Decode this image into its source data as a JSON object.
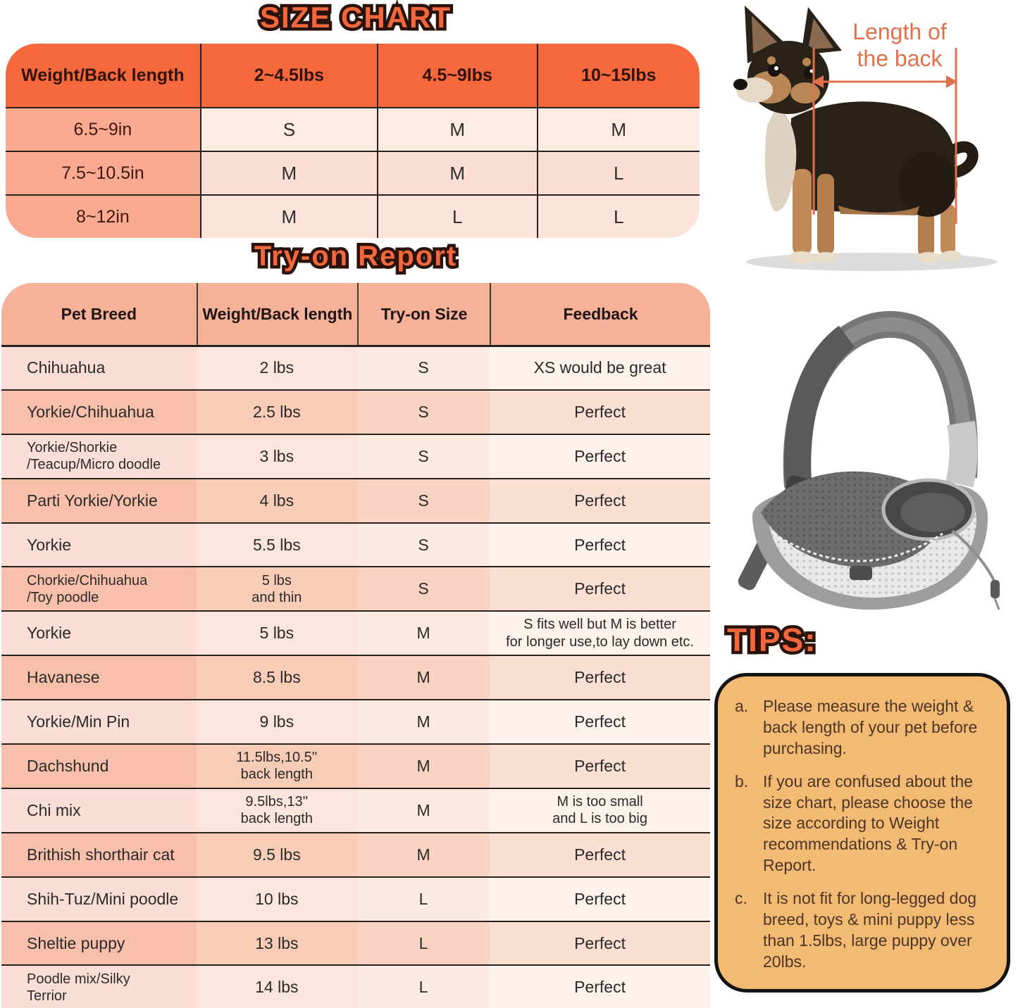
{
  "size_chart": {
    "title": "SIZE CHART",
    "columns": [
      "Weight/Back length",
      "2~4.5lbs",
      "4.5~9lbs",
      "10~15lbs"
    ],
    "rows": [
      {
        "label": "6.5~9in",
        "values": [
          "S",
          "M",
          "M"
        ]
      },
      {
        "label": "7.5~10.5in",
        "values": [
          "M",
          "M",
          "L"
        ]
      },
      {
        "label": "8~12in",
        "values": [
          "M",
          "L",
          "L"
        ]
      }
    ]
  },
  "tryon": {
    "title": "Try-on Report",
    "columns": [
      "Pet Breed",
      "Weight/Back length",
      "Try-on Size",
      "Feedback"
    ],
    "rows": [
      {
        "breed": "Chihuahua",
        "weight": "2 lbs",
        "size": "S",
        "feedback": "XS would be great"
      },
      {
        "breed": "Yorkie/Chihuahua",
        "weight": "2.5 lbs",
        "size": "S",
        "feedback": "Perfect"
      },
      {
        "breed": "Yorkie/Shorkie\n/Teacup/Micro doodle",
        "weight": "3 lbs",
        "size": "S",
        "feedback": "Perfect"
      },
      {
        "breed": "Parti Yorkie/Yorkie",
        "weight": "4 lbs",
        "size": "S",
        "feedback": "Perfect"
      },
      {
        "breed": "Yorkie",
        "weight": "5.5 lbs",
        "size": "S",
        "feedback": "Perfect"
      },
      {
        "breed": "Chorkie/Chihuahua\n/Toy poodle",
        "weight": "5 lbs\nand thin",
        "size": "S",
        "feedback": "Perfect"
      },
      {
        "breed": "Yorkie",
        "weight": "5 lbs",
        "size": "M",
        "feedback": "S fits well but M is better\nfor longer use,to lay down etc."
      },
      {
        "breed": "Havanese",
        "weight": "8.5 lbs",
        "size": "M",
        "feedback": "Perfect"
      },
      {
        "breed": "Yorkie/Min Pin",
        "weight": "9 lbs",
        "size": "M",
        "feedback": "Perfect"
      },
      {
        "breed": "Dachshund",
        "weight": "11.5lbs,10.5''\nback length",
        "size": "M",
        "feedback": "Perfect"
      },
      {
        "breed": "Chi mix",
        "weight": "9.5lbs,13''\nback length",
        "size": "M",
        "feedback": "M is too small\nand L is too big"
      },
      {
        "breed": "Brithish shorthair cat",
        "weight": "9.5 lbs",
        "size": "M",
        "feedback": "Perfect"
      },
      {
        "breed": "Shih-Tuz/Mini poodle",
        "weight": "10 lbs",
        "size": "L",
        "feedback": "Perfect"
      },
      {
        "breed": "Sheltie puppy",
        "weight": "13 lbs",
        "size": "L",
        "feedback": "Perfect"
      },
      {
        "breed": "Poodle mix/Silky\nTerrior",
        "weight": "14 lbs",
        "size": "L",
        "feedback": "Perfect"
      }
    ]
  },
  "dog_figure": {
    "annotation_line1": "Length of",
    "annotation_line2": "the back"
  },
  "tips": {
    "title": "TIPS:",
    "items": [
      {
        "key": "a.",
        "text": "Please measure the weight & back length of your pet before purchasing."
      },
      {
        "key": "b.",
        "text": "If you are confused about the size chart, please choose the size according to Weight recommendations & Try-on Report."
      },
      {
        "key": "c.",
        "text": "It is not fit for long-legged dog breed, toys & mini puppy less than 1.5lbs, large puppy over 20lbs."
      }
    ]
  },
  "colors": {
    "accent_orange": "#f2683c",
    "table_header_orange": "#f4683c",
    "tryon_header_salmon": "#f6b299",
    "annotation_orange": "#e0714a",
    "tips_box_bg": "#f3ba74"
  }
}
